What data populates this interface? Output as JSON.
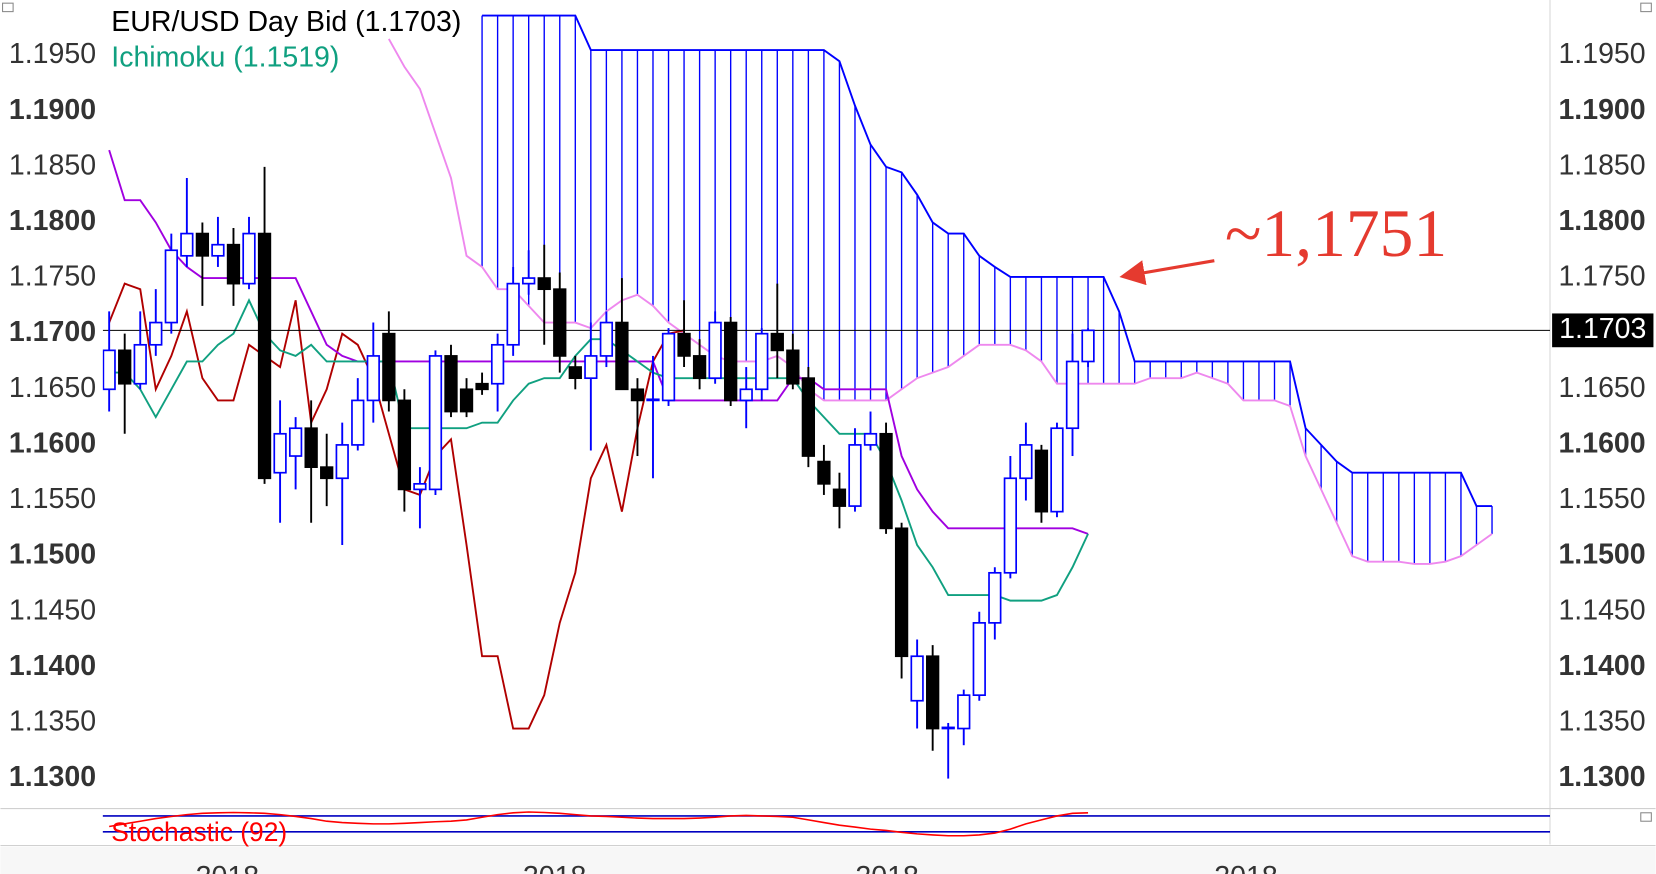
{
  "chart_data": {
    "type": "candlestick",
    "title": "EUR/USD Day Bid (1.1703)",
    "indicator_label": "Ichimoku (1.1519)",
    "annotation": "~1,1751",
    "annotation_value": 1.1751,
    "last_price": {
      "value": 1.1703,
      "label": "1.1703"
    },
    "x_labels": [
      "2018",
      "2018",
      "2018",
      "2018"
    ],
    "ylim": [
      1.1274,
      1.2
    ],
    "yticks": [
      {
        "value": 1.13,
        "label": "1.1300"
      },
      {
        "value": 1.135,
        "label": "1.1350"
      },
      {
        "value": 1.14,
        "label": "1.1400"
      },
      {
        "value": 1.145,
        "label": "1.1450"
      },
      {
        "value": 1.15,
        "label": "1.1500"
      },
      {
        "value": 1.155,
        "label": "1.1550"
      },
      {
        "value": 1.16,
        "label": "1.1600"
      },
      {
        "value": 1.165,
        "label": "1.1650"
      },
      {
        "value": 1.17,
        "label": "1.1700"
      },
      {
        "value": 1.175,
        "label": "1.1750"
      },
      {
        "value": 1.18,
        "label": "1.1800"
      },
      {
        "value": 1.185,
        "label": "1.1850"
      },
      {
        "value": 1.19,
        "label": "1.1900"
      },
      {
        "value": 1.195,
        "label": "1.1950"
      }
    ],
    "candles": {
      "up_color": "#0000ff",
      "down_color": "#000000",
      "open": [
        1.165,
        1.1685,
        1.1655,
        1.169,
        1.171,
        1.177,
        1.179,
        1.177,
        1.178,
        1.1745,
        1.179,
        1.1575,
        1.159,
        1.1615,
        1.158,
        1.157,
        1.16,
        1.164,
        1.17,
        1.164,
        1.156,
        1.156,
        1.168,
        1.165,
        1.1655,
        1.1655,
        1.169,
        1.1745,
        1.175,
        1.174,
        1.167,
        1.166,
        1.168,
        1.171,
        1.165,
        1.164,
        1.164,
        1.17,
        1.168,
        1.166,
        1.171,
        1.164,
        1.165,
        1.17,
        1.1685,
        1.166,
        1.1585,
        1.156,
        1.1545,
        1.16,
        1.161,
        1.1525,
        1.137,
        1.141,
        1.1345,
        1.1345,
        1.1375,
        1.144,
        1.1485,
        1.157,
        1.1595,
        1.154,
        1.1615,
        1.1675
      ],
      "high": [
        1.172,
        1.17,
        1.172,
        1.174,
        1.179,
        1.184,
        1.18,
        1.1805,
        1.1795,
        1.1805,
        1.185,
        1.164,
        1.1625,
        1.164,
        1.161,
        1.162,
        1.166,
        1.171,
        1.172,
        1.165,
        1.158,
        1.1685,
        1.169,
        1.166,
        1.1665,
        1.17,
        1.176,
        1.1775,
        1.178,
        1.1755,
        1.168,
        1.171,
        1.172,
        1.175,
        1.166,
        1.168,
        1.1705,
        1.173,
        1.1695,
        1.172,
        1.1715,
        1.167,
        1.1705,
        1.1745,
        1.17,
        1.167,
        1.16,
        1.1575,
        1.1615,
        1.163,
        1.162,
        1.153,
        1.1425,
        1.142,
        1.135,
        1.138,
        1.145,
        1.149,
        1.159,
        1.162,
        1.16,
        1.162,
        1.17,
        1.1705
      ],
      "low": [
        1.163,
        1.161,
        1.165,
        1.168,
        1.17,
        1.176,
        1.1725,
        1.176,
        1.1725,
        1.174,
        1.1565,
        1.153,
        1.156,
        1.153,
        1.1545,
        1.151,
        1.1595,
        1.162,
        1.163,
        1.154,
        1.1525,
        1.1555,
        1.1625,
        1.1625,
        1.1645,
        1.163,
        1.168,
        1.1735,
        1.169,
        1.1665,
        1.165,
        1.1595,
        1.167,
        1.165,
        1.159,
        1.157,
        1.1635,
        1.167,
        1.165,
        1.1655,
        1.1635,
        1.1615,
        1.164,
        1.166,
        1.165,
        1.158,
        1.1555,
        1.1525,
        1.154,
        1.1595,
        1.152,
        1.139,
        1.1345,
        1.1325,
        1.13,
        1.133,
        1.137,
        1.1425,
        1.148,
        1.155,
        1.153,
        1.1535,
        1.159,
        1.167
      ],
      "close": [
        1.1685,
        1.1655,
        1.169,
        1.171,
        1.1775,
        1.179,
        1.177,
        1.178,
        1.1745,
        1.179,
        1.157,
        1.161,
        1.1615,
        1.158,
        1.157,
        1.16,
        1.164,
        1.168,
        1.164,
        1.156,
        1.1565,
        1.168,
        1.163,
        1.163,
        1.165,
        1.169,
        1.1745,
        1.175,
        1.174,
        1.168,
        1.166,
        1.168,
        1.171,
        1.165,
        1.164,
        1.1641,
        1.17,
        1.168,
        1.166,
        1.171,
        1.164,
        1.165,
        1.17,
        1.1685,
        1.1655,
        1.159,
        1.1565,
        1.1545,
        1.16,
        1.161,
        1.1525,
        1.141,
        1.141,
        1.1345,
        1.1346,
        1.1375,
        1.144,
        1.1485,
        1.157,
        1.16,
        1.154,
        1.1615,
        1.1675,
        1.1703
      ]
    },
    "ichimoku": {
      "cloud_color": "#0000ff",
      "senkou_a": {
        "color": "#ee88ee",
        "values": [
          null,
          null,
          null,
          null,
          null,
          null,
          null,
          null,
          null,
          null,
          null,
          null,
          null,
          null,
          null,
          null,
          null,
          null,
          1.1965,
          1.194,
          1.192,
          1.188,
          1.184,
          1.177,
          1.176,
          1.174,
          1.174,
          1.1725,
          1.171,
          1.171,
          1.171,
          1.1705,
          1.172,
          1.173,
          1.1735,
          1.1725,
          1.171,
          1.17,
          1.169,
          1.168,
          1.1675,
          1.1675,
          1.1675,
          1.168,
          1.167,
          1.165,
          1.164,
          1.164,
          1.164,
          1.164,
          1.164,
          1.165,
          1.166,
          1.1665,
          1.167,
          1.168,
          1.169,
          1.169,
          1.169,
          1.1685,
          1.1675,
          1.1655,
          1.1655,
          1.1655,
          1.1655,
          1.1655,
          1.1655,
          1.166,
          1.166,
          1.166,
          1.1665,
          1.166,
          1.1655,
          1.164,
          1.164,
          1.164,
          1.1635,
          1.159,
          1.156,
          1.153,
          1.15,
          1.1495,
          1.1495,
          1.1495,
          1.1493,
          1.1493,
          1.1495,
          1.15,
          1.151,
          1.152
        ]
      },
      "senkou_b": {
        "color": "#0000ff",
        "values": [
          null,
          null,
          null,
          null,
          null,
          null,
          null,
          null,
          null,
          null,
          null,
          null,
          null,
          null,
          null,
          null,
          null,
          null,
          null,
          null,
          null,
          null,
          null,
          null,
          1.1986,
          1.1986,
          1.1986,
          1.1986,
          1.1986,
          1.1986,
          1.1986,
          1.1955,
          1.1955,
          1.1955,
          1.1955,
          1.1955,
          1.1955,
          1.1955,
          1.1955,
          1.1955,
          1.1955,
          1.1955,
          1.1955,
          1.1955,
          1.1955,
          1.1955,
          1.1955,
          1.1945,
          1.1905,
          1.187,
          1.185,
          1.1845,
          1.1825,
          1.18,
          1.179,
          1.179,
          1.177,
          1.176,
          1.1751,
          1.1751,
          1.1751,
          1.1751,
          1.1751,
          1.1751,
          1.1751,
          1.172,
          1.1675,
          1.1675,
          1.1675,
          1.1675,
          1.1675,
          1.1675,
          1.1675,
          1.1675,
          1.1675,
          1.1675,
          1.1675,
          1.1615,
          1.16,
          1.1585,
          1.1575,
          1.1575,
          1.1575,
          1.1575,
          1.1575,
          1.1575,
          1.1575,
          1.1575,
          1.1545,
          1.1545
        ]
      },
      "tenkan": {
        "color": "#10a080",
        "values": [
          1.1665,
          1.1665,
          1.165,
          1.1625,
          1.165,
          1.1675,
          1.1675,
          1.169,
          1.17,
          1.173,
          1.17,
          1.1685,
          1.168,
          1.169,
          1.1675,
          1.1675,
          1.1675,
          1.1675,
          1.1675,
          1.1615,
          1.1615,
          1.1615,
          1.1615,
          1.1615,
          1.162,
          1.162,
          1.164,
          1.1655,
          1.166,
          1.166,
          1.168,
          1.1695,
          1.1695,
          1.1685,
          1.1675,
          1.1665,
          1.166,
          1.166,
          1.166,
          1.166,
          1.166,
          1.166,
          1.166,
          1.166,
          1.166,
          1.164,
          1.1625,
          1.161,
          1.161,
          1.161,
          1.1585,
          1.155,
          1.151,
          1.149,
          1.1465,
          1.1465,
          1.1465,
          1.1465,
          1.146,
          1.146,
          1.146,
          1.1465,
          1.149,
          1.152
        ]
      },
      "kijun": {
        "color": "#a000e0",
        "values": [
          1.1865,
          1.182,
          1.182,
          1.18,
          1.1775,
          1.176,
          1.175,
          1.175,
          1.175,
          1.175,
          1.175,
          1.175,
          1.175,
          1.172,
          1.169,
          1.168,
          1.1675,
          1.1675,
          1.1675,
          1.1675,
          1.1675,
          1.1675,
          1.1675,
          1.1675,
          1.1675,
          1.1675,
          1.1675,
          1.1675,
          1.1675,
          1.1675,
          1.1675,
          1.1675,
          1.1675,
          1.1675,
          1.1675,
          1.1675,
          1.164,
          1.164,
          1.164,
          1.164,
          1.164,
          1.164,
          1.164,
          1.164,
          1.166,
          1.166,
          1.165,
          1.165,
          1.165,
          1.165,
          1.165,
          1.159,
          1.156,
          1.154,
          1.1525,
          1.1525,
          1.1525,
          1.1525,
          1.1525,
          1.1525,
          1.1525,
          1.1525,
          1.1525,
          1.152
        ]
      },
      "chikou": {
        "color": "#b00000",
        "values": [
          1.171,
          1.1745,
          1.174,
          1.165,
          1.168,
          1.172,
          1.166,
          1.164,
          1.164,
          1.169,
          1.168,
          1.167,
          1.173,
          1.162,
          1.165,
          1.17,
          1.169,
          1.166,
          1.161,
          1.156,
          1.1555,
          1.159,
          1.1605,
          1.151,
          1.141,
          1.141,
          1.1345,
          1.1345,
          1.1375,
          1.144,
          1.1485,
          1.157,
          1.16,
          1.154,
          1.1615,
          1.1675,
          1.17,
          1.1703
        ]
      }
    },
    "stochastic": {
      "label": "Stochastic (92)",
      "color": "#ff0000",
      "level_color": "#0000c0",
      "ylim": [
        0,
        100
      ],
      "levels": [
        20,
        80
      ],
      "values": [
        40,
        50,
        60,
        70,
        78,
        85,
        90,
        92,
        93,
        92,
        90,
        85,
        78,
        70,
        60,
        55,
        52,
        50,
        50,
        52,
        55,
        58,
        60,
        65,
        75,
        85,
        92,
        95,
        93,
        90,
        85,
        80,
        78,
        75,
        72,
        70,
        70,
        70,
        72,
        75,
        80,
        82,
        80,
        78,
        75,
        65,
        55,
        45,
        38,
        30,
        25,
        18,
        12,
        8,
        5,
        5,
        8,
        15,
        30,
        50,
        65,
        80,
        90,
        92
      ]
    }
  }
}
